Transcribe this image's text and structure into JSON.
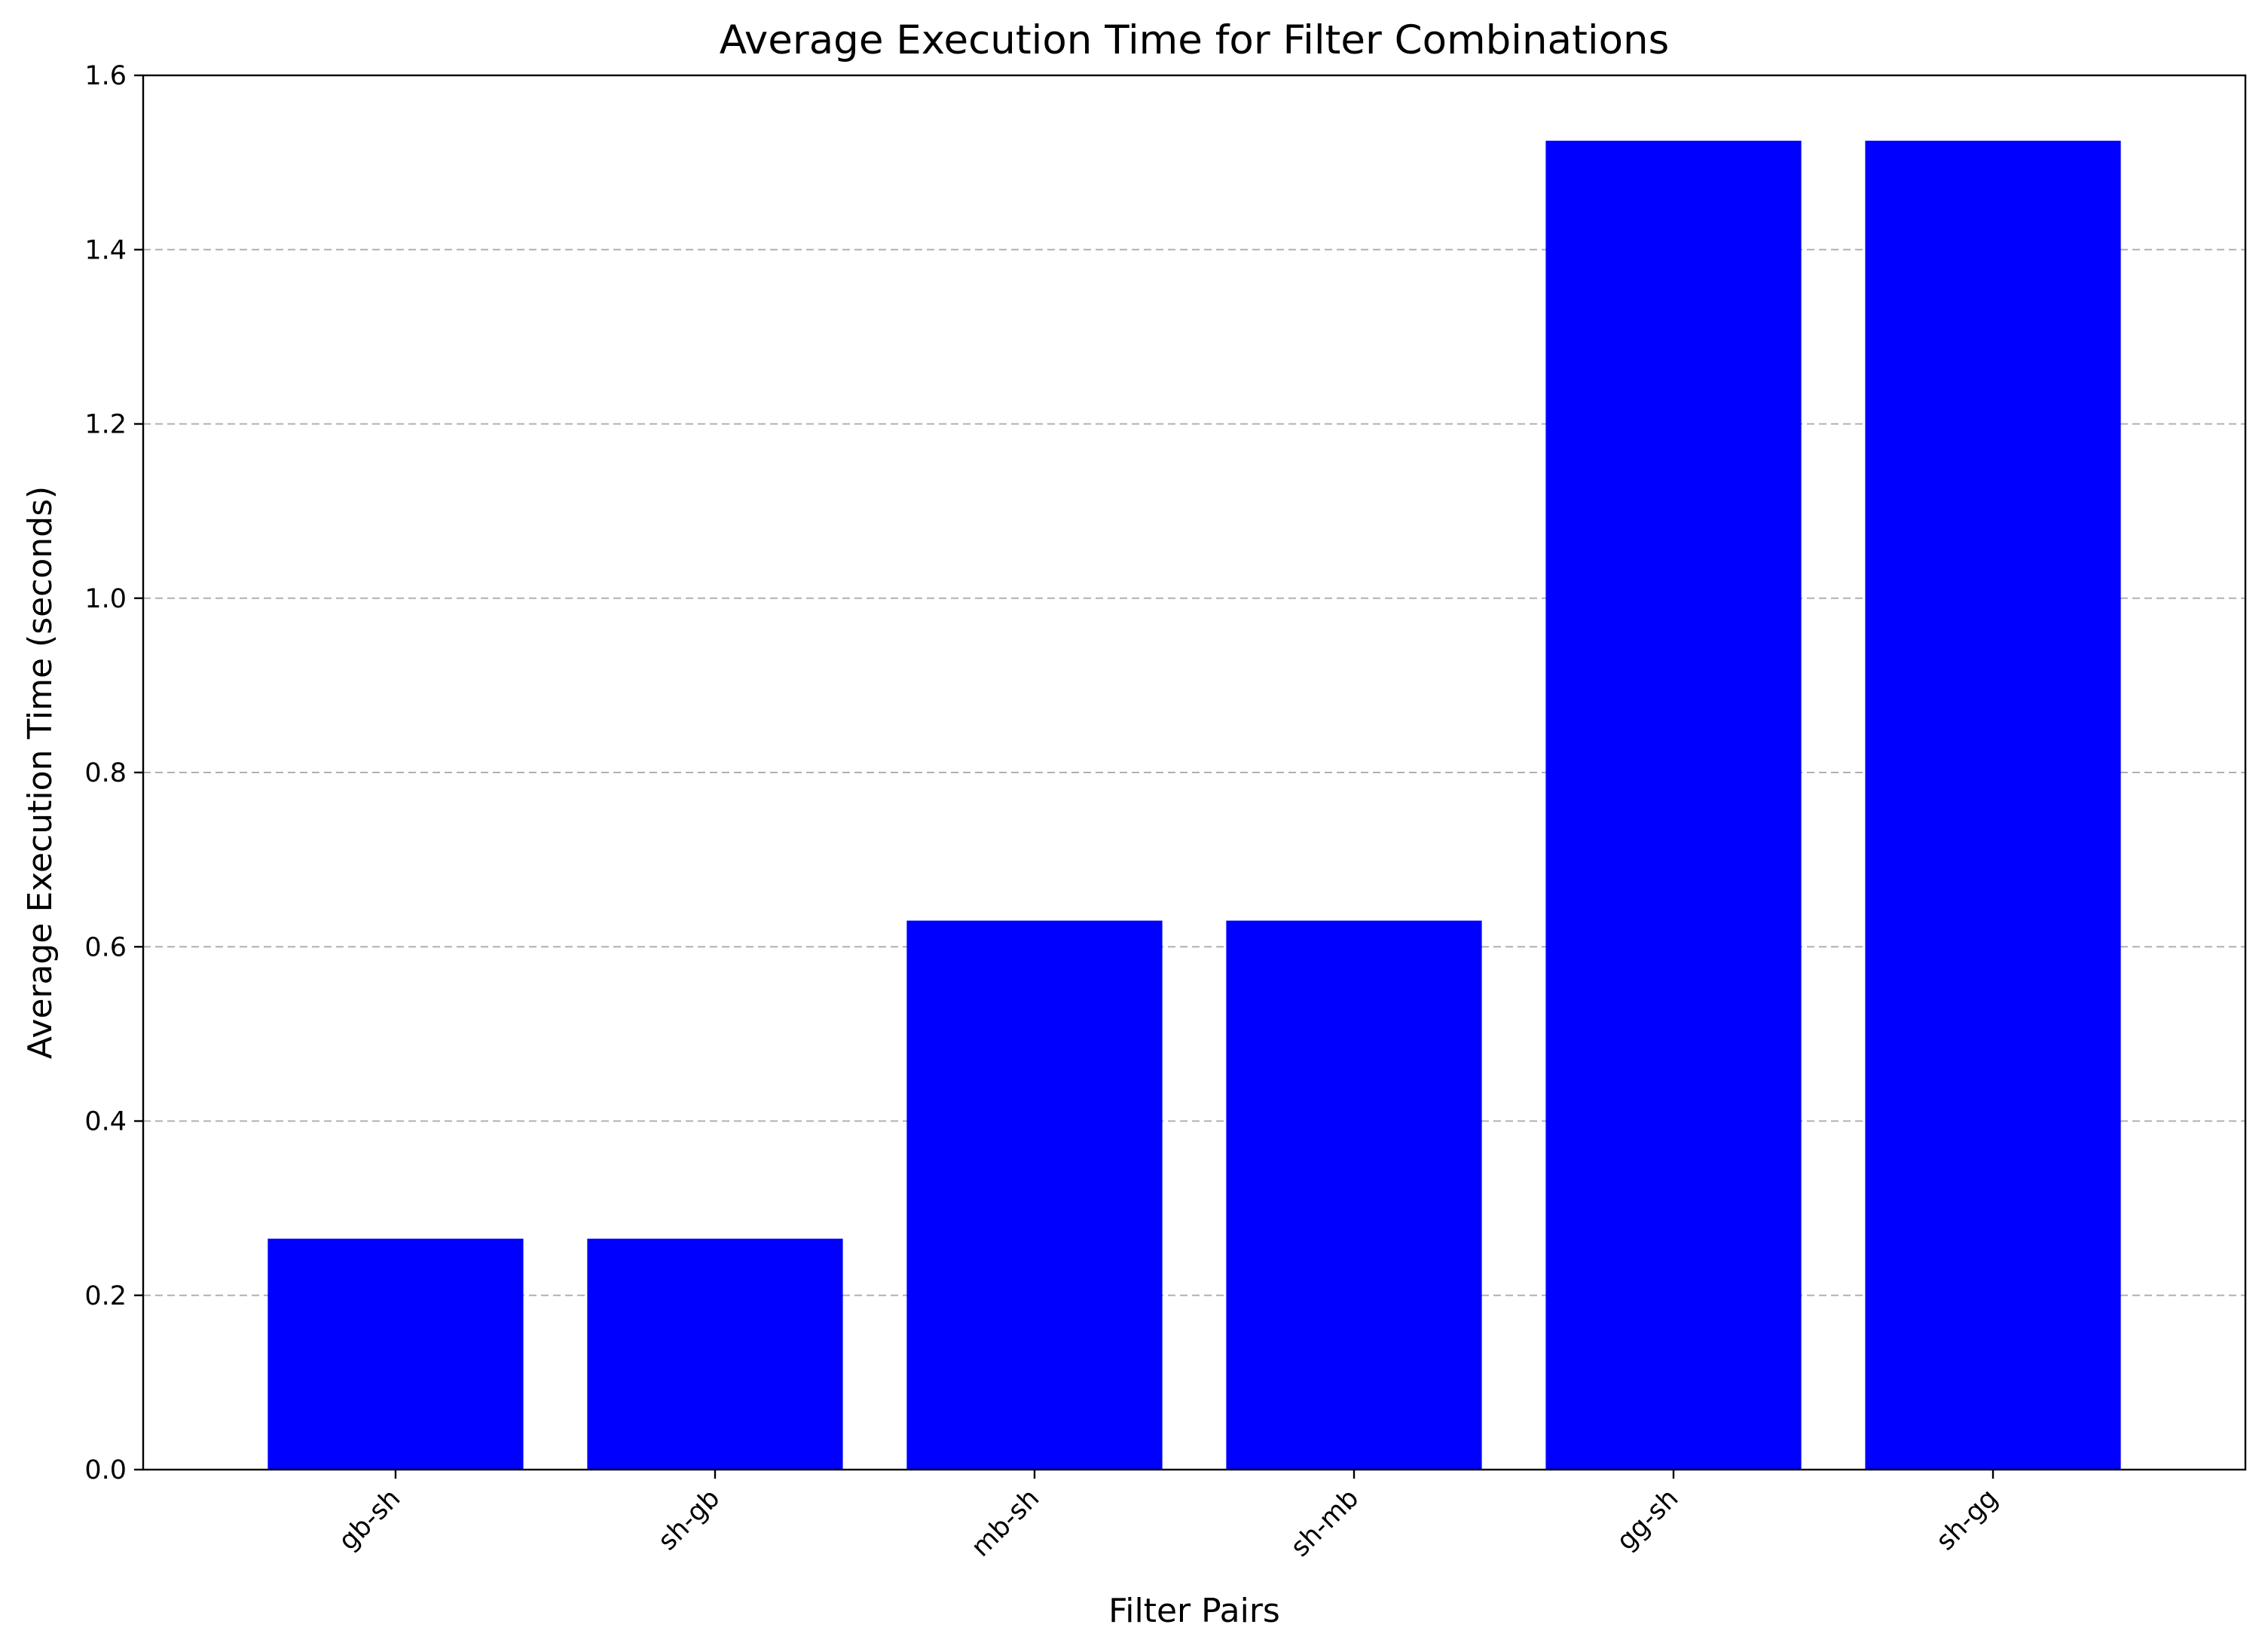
{
  "chart_data": {
    "type": "bar",
    "title": "Average Execution Time for Filter Combinations",
    "xlabel": "Filter Pairs",
    "ylabel": "Average Execution Time (seconds)",
    "categories": [
      "gb-sh",
      "sh-gb",
      "mb-sh",
      "sh-mb",
      "gg-sh",
      "sh-gg"
    ],
    "values": [
      0.265,
      0.265,
      0.63,
      0.63,
      1.525,
      1.525
    ],
    "ylim": [
      0,
      1.6
    ],
    "yticks": [
      "0.0",
      "0.2",
      "0.4",
      "0.6",
      "0.8",
      "1.0",
      "1.2",
      "1.4",
      "1.6"
    ],
    "bar_color": "#0000ff",
    "grid": "y-dashed",
    "legend": "none"
  }
}
